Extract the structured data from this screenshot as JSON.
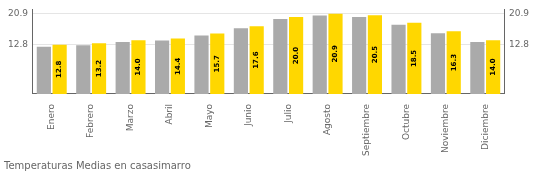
{
  "chart_data": {
    "type": "bar",
    "title": "Temperaturas Medias en casasimarro",
    "categories": [
      "Enero",
      "Febrero",
      "Marzo",
      "Abril",
      "Mayo",
      "Junio",
      "Julio",
      "Agosto",
      "Septiembre",
      "Octubre",
      "Noviembre",
      "Diciembre"
    ],
    "series": [
      {
        "color": "#AAAAAA",
        "values": [
          12.3,
          12.7,
          13.5,
          13.9,
          15.2,
          17.1,
          19.5,
          20.4,
          20.0,
          18.0,
          15.8,
          13.5
        ]
      },
      {
        "color": "#FFD700",
        "values": [
          12.8,
          13.2,
          14.0,
          14.4,
          15.7,
          17.6,
          20.0,
          20.9,
          20.5,
          18.5,
          16.3,
          14.0
        ],
        "data_labels": true,
        "value_labels": [
          "12.8",
          "13.2",
          "14.0",
          "14.4",
          "15.7",
          "17.6",
          "20.0",
          "20.9",
          "20.5",
          "18.5",
          "16.3",
          "14.0"
        ]
      }
    ],
    "ylim": [
      0,
      22.0
    ],
    "yticks": [
      12.8,
      20.9
    ],
    "y2lim": [
      0,
      22.0
    ],
    "y2ticks": [
      12.8,
      20.9
    ],
    "grid": true
  }
}
